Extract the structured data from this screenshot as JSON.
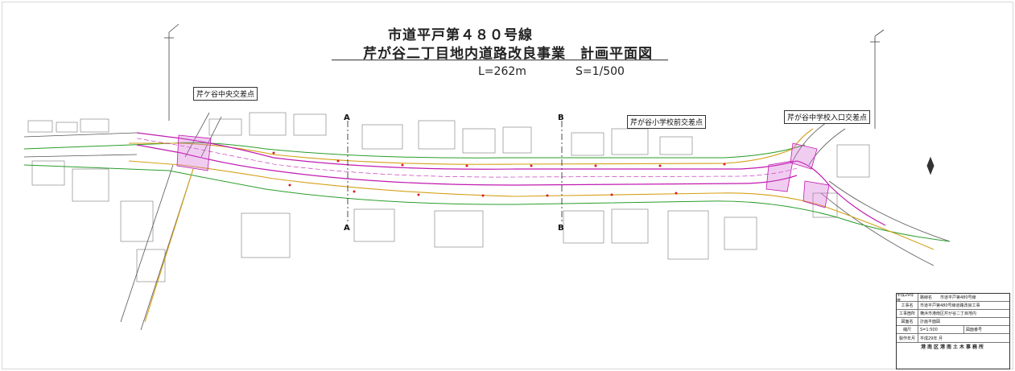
{
  "title": {
    "line1": "市道平戸第４８０号線",
    "line2": "芹が谷二丁目地内道路改良事業　計画平面図",
    "length": "L=262m",
    "scale": "S=1/500"
  },
  "intersections": [
    {
      "label": "芹ケ谷中央交差点"
    },
    {
      "label": "芹が谷小学校前交差点"
    },
    {
      "label": "芹が谷中学校入口交差点"
    }
  ],
  "section_marks": [
    "A",
    "A",
    "B",
    "B"
  ],
  "title_block": {
    "rows": [
      {
        "key": "平成29年度",
        "value": "路線名　　市道平戸第480号線"
      },
      {
        "key": "工事名",
        "value": "市道平戸第480号線道路改良工事"
      },
      {
        "key": "工事箇所",
        "value": "横浜市港南区芹が谷二丁目地内"
      },
      {
        "key": "図面名",
        "value": "計画平面図"
      },
      {
        "key": "縮尺",
        "value_a": "S=1:500",
        "value_b": "図面番号"
      },
      {
        "key": "製作年月",
        "value": "平成29年 月"
      }
    ],
    "footer": "港南区港南土木事務所"
  },
  "colors": {
    "road_centerline": "#c01ab0",
    "curb": "#d4a017",
    "boundary": "#2a9d2a",
    "crosswalk": "#d46fd4",
    "drawing": "#555555"
  }
}
